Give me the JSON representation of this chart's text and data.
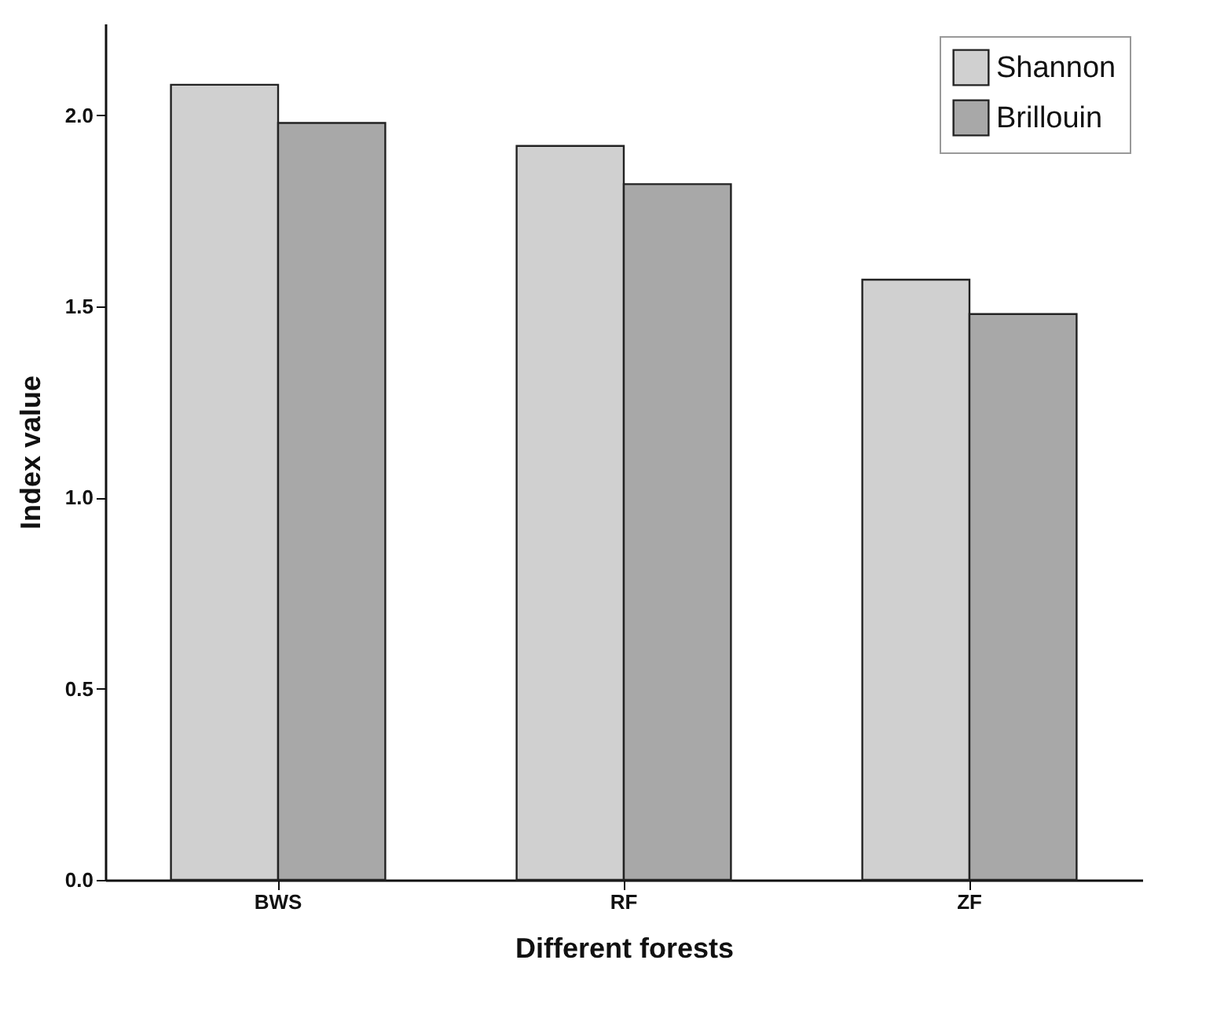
{
  "chart_data": {
    "type": "bar",
    "xlabel": "Different forests",
    "ylabel": "Index value",
    "categories": [
      "BWS",
      "RF",
      "ZF"
    ],
    "series": [
      {
        "name": "Shannon",
        "color": "#d0d0d0",
        "values": [
          2.08,
          1.92,
          1.57
        ]
      },
      {
        "name": "Brillouin",
        "color": "#a8a8a8",
        "values": [
          1.98,
          1.82,
          1.48
        ]
      }
    ],
    "ylim": [
      0,
      2.24
    ],
    "yticks": [
      {
        "value": 0,
        "label": "0.0"
      },
      {
        "value": 0.5,
        "label": "0.5"
      },
      {
        "value": 1,
        "label": "1.0"
      },
      {
        "value": 1.5,
        "label": "1.5"
      },
      {
        "value": 2,
        "label": "2.0"
      }
    ],
    "grid": false,
    "legend": "top right"
  }
}
